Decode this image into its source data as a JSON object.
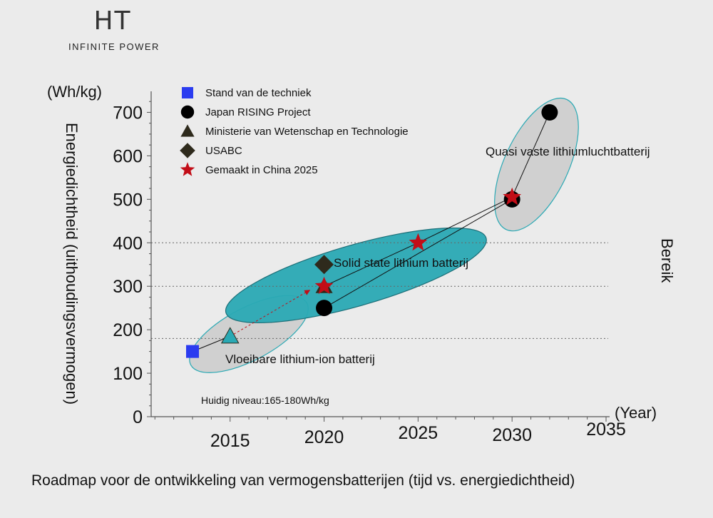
{
  "logo": {
    "mark": "HT",
    "subtitle": "INFINITE POWER"
  },
  "colors": {
    "stand": "#2b3cf0",
    "japan": "#000000",
    "ministerie": "#2e2a1c",
    "usabc": "#2e2a1c",
    "china": "#c20d17",
    "teal": "#2aa9b4",
    "gray_ellipse": "#c9c9c9"
  },
  "chart_data": {
    "type": "scatter",
    "title": "Roadmap voor de ontwikkeling van vermogensbatterijen (tijd vs. energiedichtheid)",
    "ylabel": "Energiedichtheid (uithoudingsvermogen)",
    "ylabel_unit": "(Wh/kg)",
    "xlabel_unit": "(Year)",
    "right_label": "Bereik",
    "xlim": [
      2010.8,
      2035
    ],
    "ylim": [
      0,
      750
    ],
    "xticks": [
      2015,
      2020,
      2025,
      2030,
      2035
    ],
    "yticks": [
      0,
      100,
      200,
      300,
      400,
      500,
      600,
      700
    ],
    "reference_lines": [
      180,
      300,
      400
    ],
    "legend": [
      {
        "name": "Stand van de techniek",
        "marker": "square",
        "color_key": "stand"
      },
      {
        "name": "Japan RISING Project",
        "marker": "circle",
        "color_key": "japan"
      },
      {
        "name": "Ministerie van Wetenschap en Technologie",
        "marker": "triangle",
        "color_key": "ministerie"
      },
      {
        "name": "USABC",
        "marker": "diamond",
        "color_key": "usabc"
      },
      {
        "name": "Gemaakt in China 2025",
        "marker": "star",
        "color_key": "china"
      }
    ],
    "series": [
      {
        "name": "Stand van de techniek",
        "marker": "square",
        "color_key": "stand",
        "points": [
          [
            2013,
            150
          ]
        ]
      },
      {
        "name": "Japan RISING Project",
        "marker": "circle",
        "color_key": "japan",
        "points": [
          [
            2020,
            250
          ],
          [
            2030,
            500
          ],
          [
            2032,
            700
          ]
        ]
      },
      {
        "name": "Ministerie van Wetenschap en Technologie",
        "marker": "triangle",
        "color_key": "ministerie",
        "points": [
          [
            2015,
            185
          ],
          [
            2020,
            300
          ]
        ]
      },
      {
        "name": "USABC",
        "marker": "diamond",
        "color_key": "usabc",
        "points": [
          [
            2020,
            350
          ]
        ]
      },
      {
        "name": "Gemaakt in China 2025",
        "marker": "star",
        "color_key": "china",
        "points": [
          [
            2020,
            300
          ],
          [
            2025,
            400
          ],
          [
            2030,
            505
          ]
        ]
      }
    ],
    "lines": [
      {
        "from": [
          2013,
          150
        ],
        "to": [
          2015,
          185
        ],
        "style": "solid"
      },
      {
        "from": [
          2015,
          185
        ],
        "to": [
          2019.2,
          290
        ],
        "style": "dashed-arrow"
      },
      {
        "from": [
          2020,
          300
        ],
        "to": [
          2025,
          400
        ],
        "style": "solid"
      },
      {
        "from": [
          2025,
          400
        ],
        "to": [
          2030,
          505
        ],
        "style": "solid"
      },
      {
        "from": [
          2020,
          250
        ],
        "to": [
          2030,
          500
        ],
        "style": "solid"
      },
      {
        "from": [
          2030,
          505
        ],
        "to": [
          2032,
          700
        ],
        "style": "solid"
      }
    ],
    "regions": [
      {
        "name": "Vloeibare lithium-ion batterij",
        "color_key": "gray_ellipse",
        "center": [
          2016,
          190
        ],
        "rx_years": 3.5,
        "ry_wh": 60,
        "angle": -28
      },
      {
        "name": "Solid state lithium batterij",
        "color_key": "teal",
        "center": [
          2021.7,
          325
        ],
        "rx_years": 7.2,
        "ry_wh": 70,
        "angle": -16
      },
      {
        "name": "Quasi vaste lithiumluchtbatterij",
        "color_key": "gray_ellipse",
        "center": [
          2031.3,
          580
        ],
        "rx_years": 1.7,
        "ry_wh": 165,
        "angle": 25
      }
    ],
    "annotations": {
      "liquid": "Vloeibare lithium-ion batterij",
      "solid": "Solid state lithium batterij",
      "quasi": "Quasi vaste lithiumluchtbatterij",
      "current_level": "Huidig niveau:165-180Wh/kg"
    },
    "grid": false
  }
}
